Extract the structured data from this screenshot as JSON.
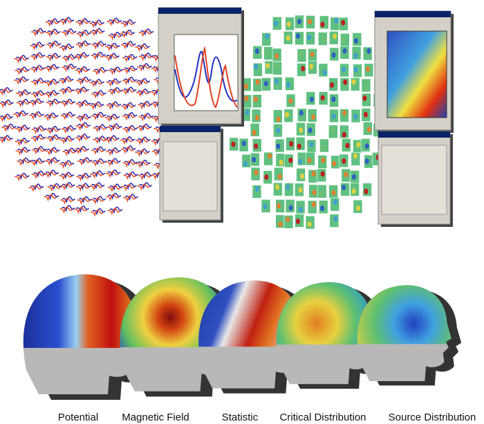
{
  "captions": [
    "Potential",
    "Magnetic Field",
    "Statistic",
    "Critical Distribution",
    "Source Distribution"
  ]
}
